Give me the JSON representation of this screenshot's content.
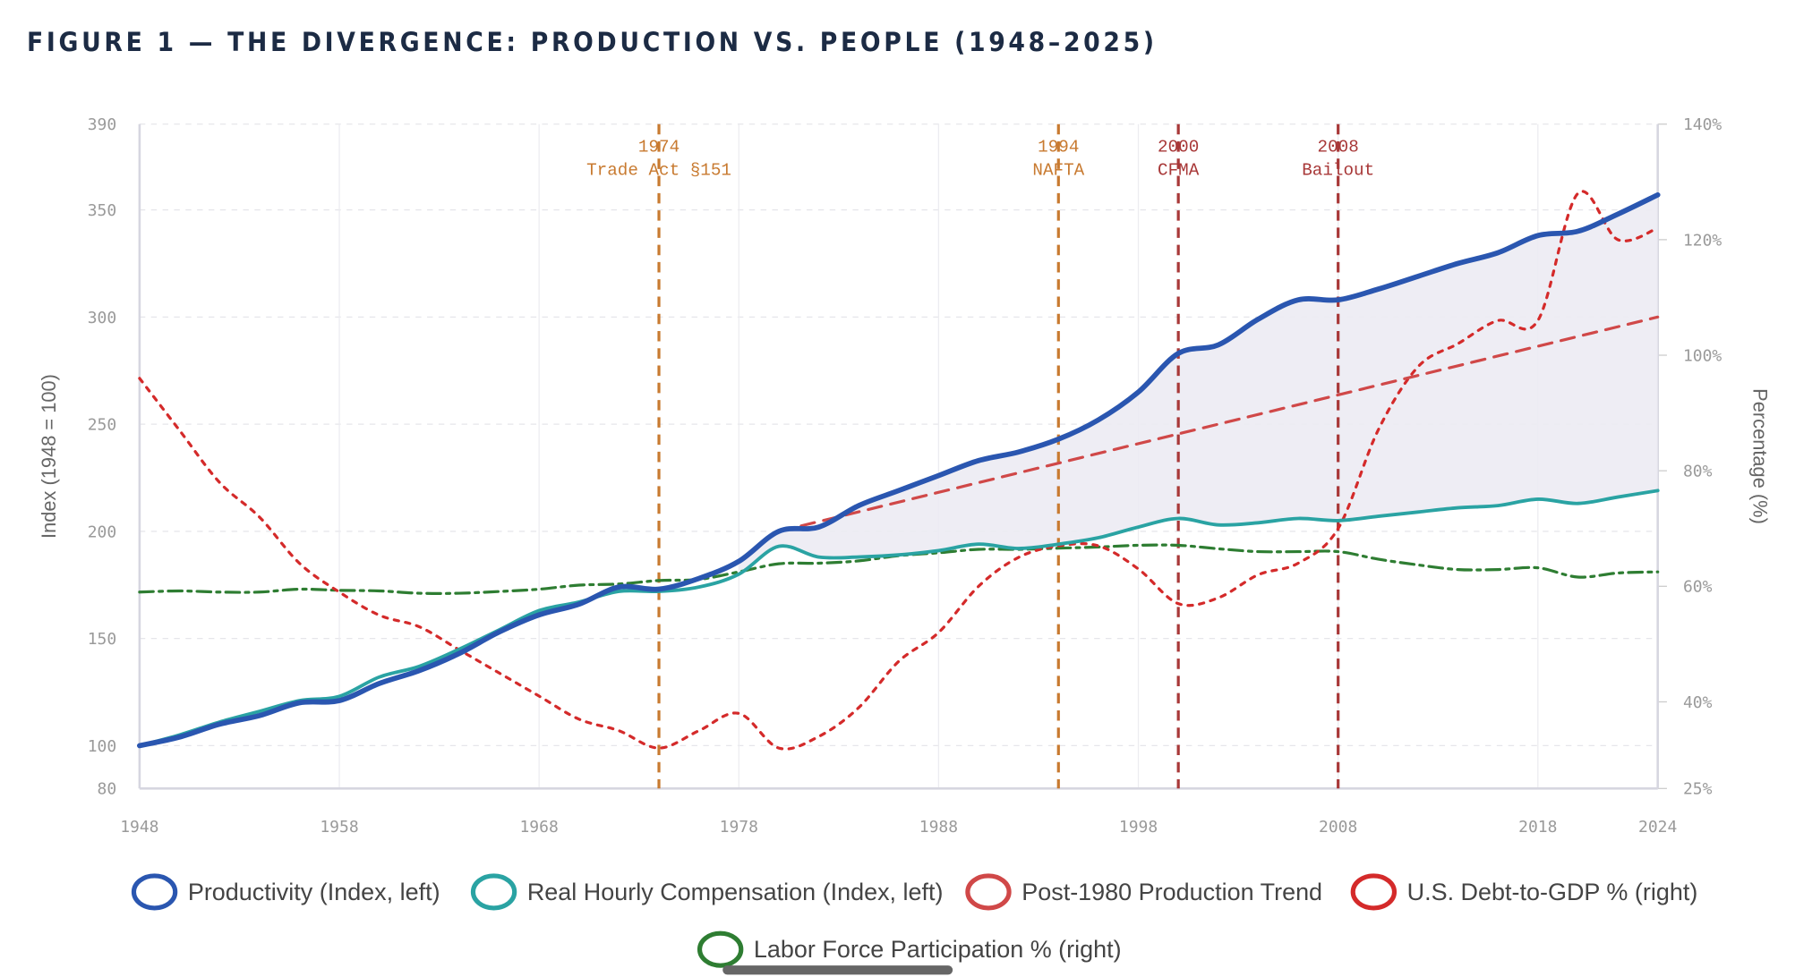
{
  "title": "FIGURE 1 — THE DIVERGENCE: PRODUCTION VS. PEOPLE (1948–2025)",
  "chart_data": {
    "type": "line",
    "title": "FIGURE 1 — THE DIVERGENCE: PRODUCTION VS. PEOPLE (1948–2025)",
    "xlabel": "",
    "ylabel": "Index (1948 = 100)",
    "y2label": "Percentage (%)",
    "xlim": [
      1948,
      2024
    ],
    "ylim": [
      80,
      390
    ],
    "y2lim": [
      25,
      140
    ],
    "xticks": [
      "1948",
      "1958",
      "1968",
      "1978",
      "1988",
      "1998",
      "2008",
      "2018",
      "2024"
    ],
    "yticks": [
      "80",
      "100",
      "150",
      "200",
      "250",
      "300",
      "350",
      "390"
    ],
    "y2ticks": [
      "25%",
      "40%",
      "60%",
      "80%",
      "100%",
      "120%",
      "140%"
    ],
    "grid": true,
    "legend_position": "bottom",
    "x": [
      1948,
      1950,
      1952,
      1954,
      1956,
      1958,
      1960,
      1962,
      1964,
      1966,
      1968,
      1970,
      1972,
      1974,
      1976,
      1978,
      1980,
      1982,
      1984,
      1986,
      1988,
      1990,
      1992,
      1994,
      1996,
      1998,
      2000,
      2002,
      2004,
      2006,
      2008,
      2010,
      2012,
      2014,
      2016,
      2018,
      2020,
      2022,
      2024
    ],
    "series": [
      {
        "name": "Productivity (Index, left)",
        "axis": "left",
        "color": "#2a56b0",
        "style": "solid",
        "values": [
          100,
          104,
          110,
          114,
          120,
          121,
          129,
          135,
          143,
          153,
          161,
          166,
          174,
          173,
          178,
          186,
          200,
          202,
          212,
          219,
          226,
          233,
          237,
          243,
          252,
          265,
          283,
          287,
          299,
          308,
          308,
          313,
          319,
          325,
          330,
          338,
          340,
          348,
          357
        ]
      },
      {
        "name": "Real Hourly Compensation (Index, left)",
        "axis": "left",
        "color": "#2aa3a3",
        "style": "solid",
        "values": [
          100,
          105,
          111,
          116,
          121,
          123,
          132,
          137,
          145,
          154,
          163,
          167,
          172,
          172,
          174,
          180,
          193,
          188,
          188,
          189,
          191,
          194,
          192,
          194,
          197,
          202,
          206,
          203,
          204,
          206,
          205,
          207,
          209,
          211,
          212,
          215,
          213,
          216,
          219
        ]
      },
      {
        "name": "Post-1980 Production Trend",
        "axis": "left",
        "color": "#d04848",
        "style": "dashed",
        "x": [
          1980,
          2024
        ],
        "values": [
          200,
          300
        ]
      },
      {
        "name": "U.S. Debt-to-GDP % (right)",
        "axis": "right",
        "color": "#d42a2a",
        "style": "dotted",
        "values": [
          96,
          87,
          78,
          72,
          64,
          59,
          55,
          53,
          49,
          45,
          41,
          37,
          35,
          32,
          35,
          38,
          32,
          34,
          39,
          47,
          52,
          60,
          65,
          67,
          67,
          63,
          57,
          58,
          62,
          64,
          70,
          87,
          98,
          102,
          106,
          106,
          128,
          120,
          122
        ]
      },
      {
        "name": "Labor Force Participation % (right)",
        "axis": "right",
        "color": "#2e7d32",
        "style": "dashdot",
        "values": [
          59,
          59.2,
          59,
          59,
          59.5,
          59.3,
          59.2,
          58.8,
          58.8,
          59.1,
          59.5,
          60.2,
          60.4,
          61,
          61.2,
          62.5,
          63.9,
          64,
          64.4,
          65.3,
          65.8,
          66.4,
          66.4,
          66.6,
          66.8,
          67.1,
          67.1,
          66.5,
          66,
          66,
          66,
          64.7,
          63.7,
          62.9,
          62.9,
          63.2,
          61.6,
          62.3,
          62.5
        ]
      }
    ],
    "events": [
      {
        "year": 1974,
        "label1": "1974",
        "label2": "Trade Act §151",
        "color": "#c87a30"
      },
      {
        "year": 1994,
        "label1": "1994",
        "label2": "NAFTA",
        "color": "#c87a30"
      },
      {
        "year": 2000,
        "label1": "2000",
        "label2": "CFMA",
        "color": "#a83838"
      },
      {
        "year": 2008,
        "label1": "2008",
        "label2": "Bailout",
        "color": "#a83838"
      }
    ],
    "shaded_gap_color": "#ecebf3"
  }
}
